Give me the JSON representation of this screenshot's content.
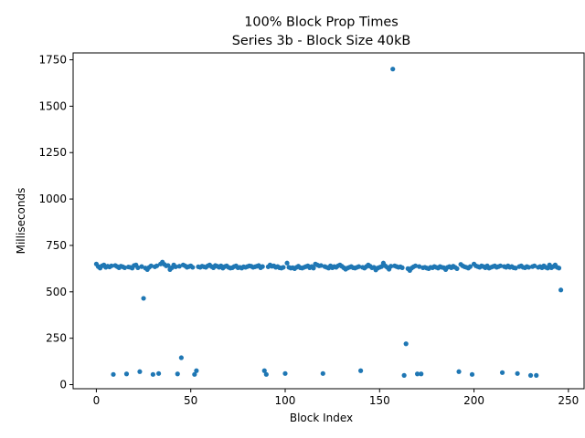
{
  "chart_data": {
    "type": "scatter",
    "title": "100% Block Prop Times",
    "subtitle": "Series 3b - Block Size 40kB",
    "xlabel": "Block Index",
    "ylabel": "Milliseconds",
    "xlim": [
      -12.3,
      258.3
    ],
    "ylim": [
      -22,
      1787
    ],
    "xticks": [
      0,
      50,
      100,
      150,
      200,
      250
    ],
    "yticks": [
      0,
      250,
      500,
      750,
      1000,
      1250,
      1500,
      1750
    ],
    "grid": false,
    "color": "#1f77b4",
    "series": [
      {
        "points": [
          [
            0,
            650
          ],
          [
            1,
            636
          ],
          [
            2,
            628
          ],
          [
            3,
            640
          ],
          [
            4,
            645
          ],
          [
            5,
            632
          ],
          [
            6,
            638
          ],
          [
            7,
            634
          ],
          [
            8,
            640
          ],
          [
            9,
            55
          ],
          [
            10,
            642
          ],
          [
            11,
            636
          ],
          [
            12,
            630
          ],
          [
            13,
            638
          ],
          [
            14,
            635
          ],
          [
            15,
            630
          ],
          [
            16,
            58
          ],
          [
            17,
            634
          ],
          [
            18,
            632
          ],
          [
            19,
            628
          ],
          [
            20,
            642
          ],
          [
            21,
            645
          ],
          [
            22,
            630
          ],
          [
            23,
            70
          ],
          [
            24,
            636
          ],
          [
            25,
            465
          ],
          [
            26,
            628
          ],
          [
            27,
            620
          ],
          [
            28,
            632
          ],
          [
            29,
            640
          ],
          [
            30,
            55
          ],
          [
            31,
            635
          ],
          [
            32,
            640
          ],
          [
            33,
            60
          ],
          [
            34,
            650
          ],
          [
            35,
            660
          ],
          [
            36,
            648
          ],
          [
            37,
            640
          ],
          [
            38,
            642
          ],
          [
            39,
            620
          ],
          [
            40,
            630
          ],
          [
            41,
            645
          ],
          [
            42,
            635
          ],
          [
            43,
            58
          ],
          [
            44,
            638
          ],
          [
            45,
            145
          ],
          [
            46,
            645
          ],
          [
            47,
            640
          ],
          [
            48,
            632
          ],
          [
            49,
            636
          ],
          [
            50,
            640
          ],
          [
            51,
            632
          ],
          [
            52,
            55
          ],
          [
            53,
            75
          ],
          [
            54,
            635
          ],
          [
            55,
            632
          ],
          [
            56,
            638
          ],
          [
            57,
            635
          ],
          [
            58,
            632
          ],
          [
            59,
            640
          ],
          [
            60,
            645
          ],
          [
            61,
            636
          ],
          [
            62,
            630
          ],
          [
            63,
            642
          ],
          [
            64,
            638
          ],
          [
            65,
            632
          ],
          [
            66,
            640
          ],
          [
            67,
            628
          ],
          [
            68,
            636
          ],
          [
            69,
            640
          ],
          [
            70,
            632
          ],
          [
            71,
            628
          ],
          [
            72,
            630
          ],
          [
            73,
            636
          ],
          [
            74,
            640
          ],
          [
            75,
            630
          ],
          [
            76,
            632
          ],
          [
            77,
            628
          ],
          [
            78,
            635
          ],
          [
            79,
            632
          ],
          [
            80,
            636
          ],
          [
            81,
            640
          ],
          [
            82,
            638
          ],
          [
            83,
            632
          ],
          [
            84,
            635
          ],
          [
            85,
            638
          ],
          [
            86,
            642
          ],
          [
            87,
            630
          ],
          [
            88,
            636
          ],
          [
            89,
            75
          ],
          [
            90,
            55
          ],
          [
            91,
            635
          ],
          [
            92,
            645
          ],
          [
            93,
            638
          ],
          [
            94,
            640
          ],
          [
            95,
            632
          ],
          [
            96,
            636
          ],
          [
            97,
            630
          ],
          [
            98,
            628
          ],
          [
            99,
            632
          ],
          [
            100,
            60
          ],
          [
            101,
            655
          ],
          [
            102,
            632
          ],
          [
            103,
            628
          ],
          [
            104,
            630
          ],
          [
            105,
            625
          ],
          [
            106,
            632
          ],
          [
            107,
            638
          ],
          [
            108,
            630
          ],
          [
            109,
            628
          ],
          [
            110,
            632
          ],
          [
            111,
            636
          ],
          [
            112,
            640
          ],
          [
            113,
            630
          ],
          [
            114,
            636
          ],
          [
            115,
            628
          ],
          [
            116,
            650
          ],
          [
            117,
            645
          ],
          [
            118,
            640
          ],
          [
            119,
            642
          ],
          [
            120,
            60
          ],
          [
            121,
            636
          ],
          [
            122,
            632
          ],
          [
            123,
            628
          ],
          [
            124,
            640
          ],
          [
            125,
            630
          ],
          [
            126,
            636
          ],
          [
            127,
            632
          ],
          [
            128,
            640
          ],
          [
            129,
            645
          ],
          [
            130,
            638
          ],
          [
            131,
            630
          ],
          [
            132,
            622
          ],
          [
            133,
            628
          ],
          [
            134,
            632
          ],
          [
            135,
            636
          ],
          [
            136,
            630
          ],
          [
            137,
            628
          ],
          [
            138,
            632
          ],
          [
            139,
            636
          ],
          [
            140,
            75
          ],
          [
            141,
            632
          ],
          [
            142,
            628
          ],
          [
            143,
            636
          ],
          [
            144,
            645
          ],
          [
            145,
            638
          ],
          [
            146,
            630
          ],
          [
            147,
            632
          ],
          [
            148,
            618
          ],
          [
            149,
            628
          ],
          [
            150,
            632
          ],
          [
            151,
            636
          ],
          [
            152,
            655
          ],
          [
            153,
            640
          ],
          [
            154,
            632
          ],
          [
            155,
            622
          ],
          [
            156,
            638
          ],
          [
            157,
            1700
          ],
          [
            158,
            640
          ],
          [
            159,
            636
          ],
          [
            160,
            632
          ],
          [
            161,
            635
          ],
          [
            162,
            630
          ],
          [
            163,
            50
          ],
          [
            164,
            220
          ],
          [
            165,
            625
          ],
          [
            166,
            615
          ],
          [
            167,
            628
          ],
          [
            168,
            635
          ],
          [
            169,
            640
          ],
          [
            170,
            58
          ],
          [
            171,
            636
          ],
          [
            172,
            58
          ],
          [
            173,
            630
          ],
          [
            174,
            632
          ],
          [
            175,
            628
          ],
          [
            176,
            625
          ],
          [
            177,
            632
          ],
          [
            178,
            630
          ],
          [
            179,
            636
          ],
          [
            180,
            632
          ],
          [
            181,
            628
          ],
          [
            182,
            636
          ],
          [
            183,
            632
          ],
          [
            184,
            630
          ],
          [
            185,
            620
          ],
          [
            186,
            632
          ],
          [
            187,
            636
          ],
          [
            188,
            630
          ],
          [
            189,
            638
          ],
          [
            190,
            632
          ],
          [
            191,
            625
          ],
          [
            192,
            70
          ],
          [
            193,
            648
          ],
          [
            194,
            640
          ],
          [
            195,
            635
          ],
          [
            196,
            632
          ],
          [
            197,
            628
          ],
          [
            198,
            636
          ],
          [
            199,
            55
          ],
          [
            200,
            650
          ],
          [
            201,
            640
          ],
          [
            202,
            636
          ],
          [
            203,
            632
          ],
          [
            204,
            640
          ],
          [
            205,
            636
          ],
          [
            206,
            630
          ],
          [
            207,
            640
          ],
          [
            208,
            628
          ],
          [
            209,
            632
          ],
          [
            210,
            636
          ],
          [
            211,
            640
          ],
          [
            212,
            632
          ],
          [
            213,
            636
          ],
          [
            214,
            640
          ],
          [
            215,
            65
          ],
          [
            216,
            636
          ],
          [
            217,
            632
          ],
          [
            218,
            640
          ],
          [
            219,
            632
          ],
          [
            220,
            636
          ],
          [
            221,
            630
          ],
          [
            222,
            628
          ],
          [
            223,
            60
          ],
          [
            224,
            636
          ],
          [
            225,
            640
          ],
          [
            226,
            632
          ],
          [
            227,
            630
          ],
          [
            228,
            636
          ],
          [
            229,
            632
          ],
          [
            230,
            50
          ],
          [
            231,
            636
          ],
          [
            232,
            640
          ],
          [
            233,
            50
          ],
          [
            234,
            632
          ],
          [
            235,
            636
          ],
          [
            236,
            630
          ],
          [
            237,
            640
          ],
          [
            238,
            632
          ],
          [
            239,
            628
          ],
          [
            240,
            645
          ],
          [
            241,
            630
          ],
          [
            242,
            636
          ],
          [
            243,
            645
          ],
          [
            244,
            632
          ],
          [
            245,
            628
          ],
          [
            246,
            510
          ]
        ]
      }
    ]
  }
}
